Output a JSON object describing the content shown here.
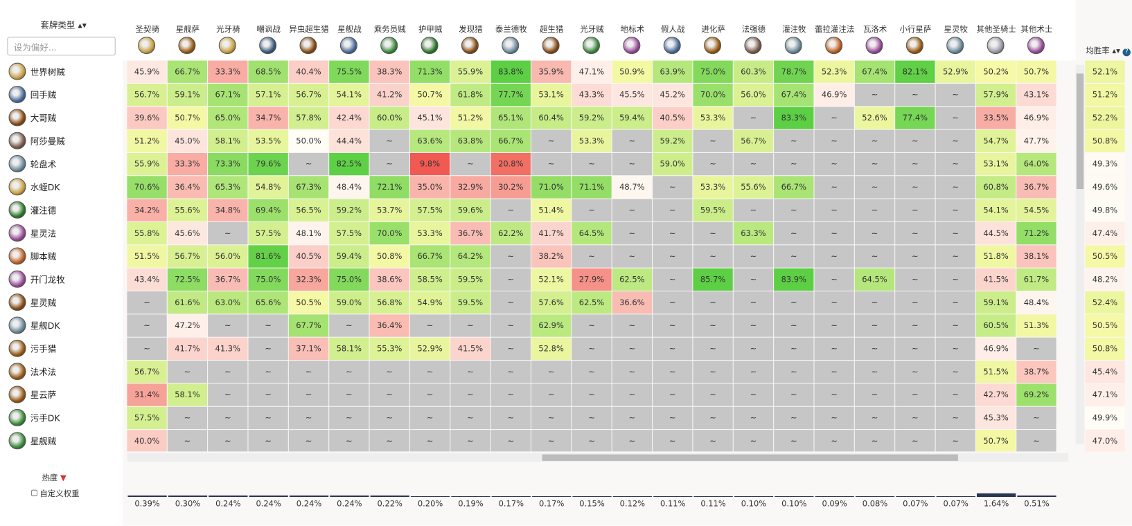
{
  "sidebar": {
    "title": "套牌类型",
    "search_placeholder": "设为偏好...",
    "popularity_label": "热度",
    "custom_weight_label": "自定义权重"
  },
  "winrate_header": "均胜率",
  "columns": [
    "圣契骑",
    "星舰萨",
    "光牙骑",
    "嘲讽战",
    "异虫超生猎",
    "星舰战",
    "乘务员贼",
    "护甲贼",
    "发现猎",
    "泰兰德牧",
    "超生猎",
    "光牙贼",
    "地标术",
    "假人战",
    "进化萨",
    "法强德",
    "灌注牧",
    "蕾拉灌注法",
    "瓦洛术",
    "小行星萨",
    "星灵牧",
    "其他圣骑士",
    "其他术士"
  ],
  "rows": [
    {
      "deck": "世界树贼",
      "winrate": "52.1%",
      "cells": [
        "45.9%",
        "66.7%",
        "33.3%",
        "68.5%",
        "40.4%",
        "75.5%",
        "38.3%",
        "71.3%",
        "55.9%",
        "83.8%",
        "35.9%",
        "47.1%",
        "50.9%",
        "63.9%",
        "75.0%",
        "60.3%",
        "78.7%",
        "52.3%",
        "67.4%",
        "82.1%",
        "52.9%",
        "50.2%",
        "50.7%"
      ]
    },
    {
      "deck": "回手贼",
      "winrate": "51.2%",
      "cells": [
        "56.7%",
        "59.1%",
        "67.1%",
        "57.1%",
        "56.7%",
        "54.1%",
        "41.2%",
        "50.7%",
        "61.8%",
        "77.7%",
        "53.1%",
        "43.3%",
        "45.5%",
        "45.2%",
        "70.0%",
        "56.0%",
        "67.4%",
        "46.9%",
        "~",
        "~",
        "~",
        "57.9%",
        "43.1%"
      ]
    },
    {
      "deck": "大哥贼",
      "winrate": "52.2%",
      "cells": [
        "39.6%",
        "50.7%",
        "65.0%",
        "34.7%",
        "57.8%",
        "42.4%",
        "60.0%",
        "45.1%",
        "51.2%",
        "65.1%",
        "60.4%",
        "59.2%",
        "59.4%",
        "40.5%",
        "53.3%",
        "~",
        "83.3%",
        "~",
        "52.6%",
        "77.4%",
        "~",
        "33.5%",
        "46.9%"
      ]
    },
    {
      "deck": "阿莎曼贼",
      "winrate": "50.8%",
      "cells": [
        "51.2%",
        "45.0%",
        "58.1%",
        "53.5%",
        "50.0%",
        "44.4%",
        "~",
        "63.6%",
        "63.8%",
        "66.7%",
        "~",
        "53.3%",
        "~",
        "59.2%",
        "~",
        "56.7%",
        "~",
        "~",
        "~",
        "~",
        "~",
        "54.7%",
        "47.7%"
      ]
    },
    {
      "deck": "轮盘术",
      "winrate": "49.3%",
      "cells": [
        "55.9%",
        "33.3%",
        "73.3%",
        "79.6%",
        "~",
        "82.5%",
        "~",
        "9.8%",
        "~",
        "20.8%",
        "~",
        "~",
        "~",
        "59.0%",
        "~",
        "~",
        "~",
        "~",
        "~",
        "~",
        "~",
        "53.1%",
        "64.0%"
      ]
    },
    {
      "deck": "水蛭DK",
      "winrate": "49.6%",
      "cells": [
        "70.6%",
        "36.4%",
        "65.3%",
        "54.8%",
        "67.3%",
        "48.4%",
        "72.1%",
        "35.0%",
        "32.9%",
        "30.2%",
        "71.0%",
        "71.1%",
        "48.7%",
        "~",
        "53.3%",
        "55.6%",
        "66.7%",
        "~",
        "~",
        "~",
        "~",
        "60.8%",
        "36.7%"
      ]
    },
    {
      "deck": "灌注德",
      "winrate": "49.8%",
      "cells": [
        "34.2%",
        "55.6%",
        "34.8%",
        "69.4%",
        "56.5%",
        "59.2%",
        "53.7%",
        "57.5%",
        "59.6%",
        "~",
        "51.4%",
        "~",
        "~",
        "~",
        "59.5%",
        "~",
        "~",
        "~",
        "~",
        "~",
        "~",
        "54.1%",
        "54.5%"
      ]
    },
    {
      "deck": "星灵法",
      "winrate": "47.4%",
      "cells": [
        "55.8%",
        "45.6%",
        "~",
        "57.5%",
        "48.1%",
        "57.5%",
        "70.0%",
        "53.3%",
        "36.7%",
        "62.2%",
        "41.7%",
        "64.5%",
        "~",
        "~",
        "~",
        "63.3%",
        "~",
        "~",
        "~",
        "~",
        "~",
        "44.5%",
        "71.2%"
      ]
    },
    {
      "deck": "脚本贼",
      "winrate": "50.5%",
      "cells": [
        "51.5%",
        "56.7%",
        "56.0%",
        "81.6%",
        "40.5%",
        "59.4%",
        "50.8%",
        "66.7%",
        "64.2%",
        "~",
        "38.2%",
        "~",
        "~",
        "~",
        "~",
        "~",
        "~",
        "~",
        "~",
        "~",
        "~",
        "51.8%",
        "38.1%"
      ]
    },
    {
      "deck": "开门龙牧",
      "winrate": "48.2%",
      "cells": [
        "43.4%",
        "72.5%",
        "36.7%",
        "75.0%",
        "32.3%",
        "75.0%",
        "38.6%",
        "58.5%",
        "59.5%",
        "~",
        "52.1%",
        "27.9%",
        "62.5%",
        "~",
        "85.7%",
        "~",
        "83.9%",
        "~",
        "64.5%",
        "~",
        "~",
        "41.5%",
        "61.7%"
      ]
    },
    {
      "deck": "星灵贼",
      "winrate": "52.4%",
      "cells": [
        "~",
        "61.6%",
        "63.0%",
        "65.6%",
        "50.5%",
        "59.0%",
        "56.8%",
        "54.9%",
        "59.5%",
        "~",
        "57.6%",
        "62.5%",
        "36.6%",
        "~",
        "~",
        "~",
        "~",
        "~",
        "~",
        "~",
        "~",
        "59.1%",
        "48.4%"
      ]
    },
    {
      "deck": "星舰DK",
      "winrate": "50.5%",
      "cells": [
        "~",
        "47.2%",
        "~",
        "~",
        "67.7%",
        "~",
        "36.4%",
        "~",
        "~",
        "~",
        "62.9%",
        "~",
        "~",
        "~",
        "~",
        "~",
        "~",
        "~",
        "~",
        "~",
        "~",
        "60.5%",
        "51.3%"
      ]
    },
    {
      "deck": "污手猎",
      "winrate": "50.8%",
      "cells": [
        "~",
        "41.7%",
        "41.3%",
        "~",
        "37.1%",
        "58.1%",
        "55.3%",
        "52.9%",
        "41.5%",
        "~",
        "52.8%",
        "~",
        "~",
        "~",
        "~",
        "~",
        "~",
        "~",
        "~",
        "~",
        "~",
        "46.9%",
        "~"
      ]
    },
    {
      "deck": "法术法",
      "winrate": "45.4%",
      "cells": [
        "56.7%",
        "~",
        "~",
        "~",
        "~",
        "~",
        "~",
        "~",
        "~",
        "~",
        "~",
        "~",
        "~",
        "~",
        "~",
        "~",
        "~",
        "~",
        "~",
        "~",
        "~",
        "51.5%",
        "38.7%"
      ]
    },
    {
      "deck": "星云萨",
      "winrate": "47.1%",
      "cells": [
        "31.4%",
        "58.1%",
        "~",
        "~",
        "~",
        "~",
        "~",
        "~",
        "~",
        "~",
        "~",
        "~",
        "~",
        "~",
        "~",
        "~",
        "~",
        "~",
        "~",
        "~",
        "~",
        "42.7%",
        "69.2%"
      ]
    },
    {
      "deck": "污手DK",
      "winrate": "49.9%",
      "cells": [
        "57.5%",
        "~",
        "~",
        "~",
        "~",
        "~",
        "~",
        "~",
        "~",
        "~",
        "~",
        "~",
        "~",
        "~",
        "~",
        "~",
        "~",
        "~",
        "~",
        "~",
        "~",
        "45.3%",
        "~"
      ]
    },
    {
      "deck": "星舰贼",
      "winrate": "47.0%",
      "cells": [
        "40.0%",
        "~",
        "~",
        "~",
        "~",
        "~",
        "~",
        "~",
        "~",
        "~",
        "~",
        "~",
        "~",
        "~",
        "~",
        "~",
        "~",
        "~",
        "~",
        "~",
        "~",
        "50.7%",
        "~"
      ]
    }
  ],
  "popularity": [
    "0.39%",
    "0.30%",
    "0.24%",
    "0.24%",
    "0.24%",
    "0.24%",
    "0.22%",
    "0.20%",
    "0.19%",
    "0.17%",
    "0.17%",
    "0.15%",
    "0.12%",
    "0.11%",
    "0.11%",
    "0.10%",
    "0.10%",
    "0.09%",
    "0.08%",
    "0.07%",
    "0.07%",
    "1.64%",
    "0.51%"
  ]
}
